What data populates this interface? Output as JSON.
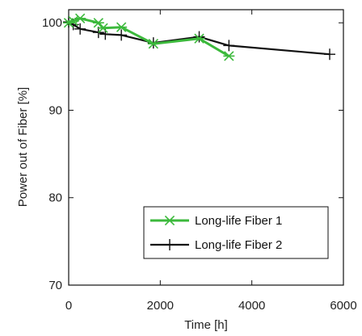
{
  "chart_data": {
    "type": "line",
    "title": "",
    "xlabel": "Time [h]",
    "ylabel": "Power out of Fiber [%]",
    "xlim": [
      0,
      6000
    ],
    "ylim": [
      70,
      101.5
    ],
    "xticks": [
      0,
      2000,
      4000,
      6000
    ],
    "yticks": [
      70,
      80,
      90,
      100
    ],
    "grid": false,
    "legend_position": "bottom-right",
    "series": [
      {
        "name": "Long-life Fiber 1",
        "color": "#3cb93c",
        "marker": "asterisk",
        "x": [
          0,
          100,
          250,
          650,
          750,
          1150,
          1850,
          2850,
          3500
        ],
        "y": [
          100.0,
          100.2,
          100.5,
          100.0,
          99.4,
          99.5,
          97.6,
          98.2,
          96.2
        ]
      },
      {
        "name": "Long-life Fiber 2",
        "color": "#111111",
        "marker": "plus",
        "x": [
          0,
          100,
          250,
          650,
          800,
          1150,
          1850,
          2850,
          3500,
          5700
        ],
        "y": [
          100.1,
          99.8,
          99.3,
          98.9,
          98.7,
          98.6,
          97.7,
          98.4,
          97.4,
          96.4
        ]
      }
    ]
  }
}
